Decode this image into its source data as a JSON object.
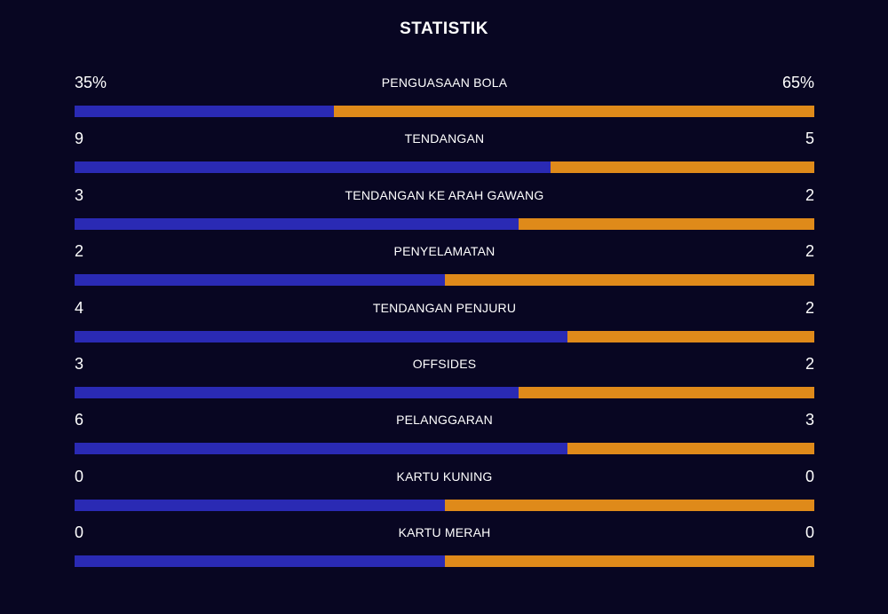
{
  "title": "STATISTIK",
  "colors": {
    "background": "#080622",
    "home": "#2a2ab4",
    "away": "#df8a1a"
  },
  "stats": [
    {
      "label": "PENGUASAAN BOLA",
      "home": "35%",
      "away": "65%",
      "home_share": 0.35
    },
    {
      "label": "TENDANGAN",
      "home": "9",
      "away": "5",
      "home_share": 0.6429
    },
    {
      "label": "TENDANGAN KE ARAH GAWANG",
      "home": "3",
      "away": "2",
      "home_share": 0.6
    },
    {
      "label": "PENYELAMATAN",
      "home": "2",
      "away": "2",
      "home_share": 0.5
    },
    {
      "label": "TENDANGAN PENJURU",
      "home": "4",
      "away": "2",
      "home_share": 0.6667
    },
    {
      "label": "OFFSIDES",
      "home": "3",
      "away": "2",
      "home_share": 0.6
    },
    {
      "label": "PELANGGARAN",
      "home": "6",
      "away": "3",
      "home_share": 0.6667
    },
    {
      "label": "KARTU KUNING",
      "home": "0",
      "away": "0",
      "home_share": 0.5
    },
    {
      "label": "KARTU MERAH",
      "home": "0",
      "away": "0",
      "home_share": 0.5
    }
  ]
}
